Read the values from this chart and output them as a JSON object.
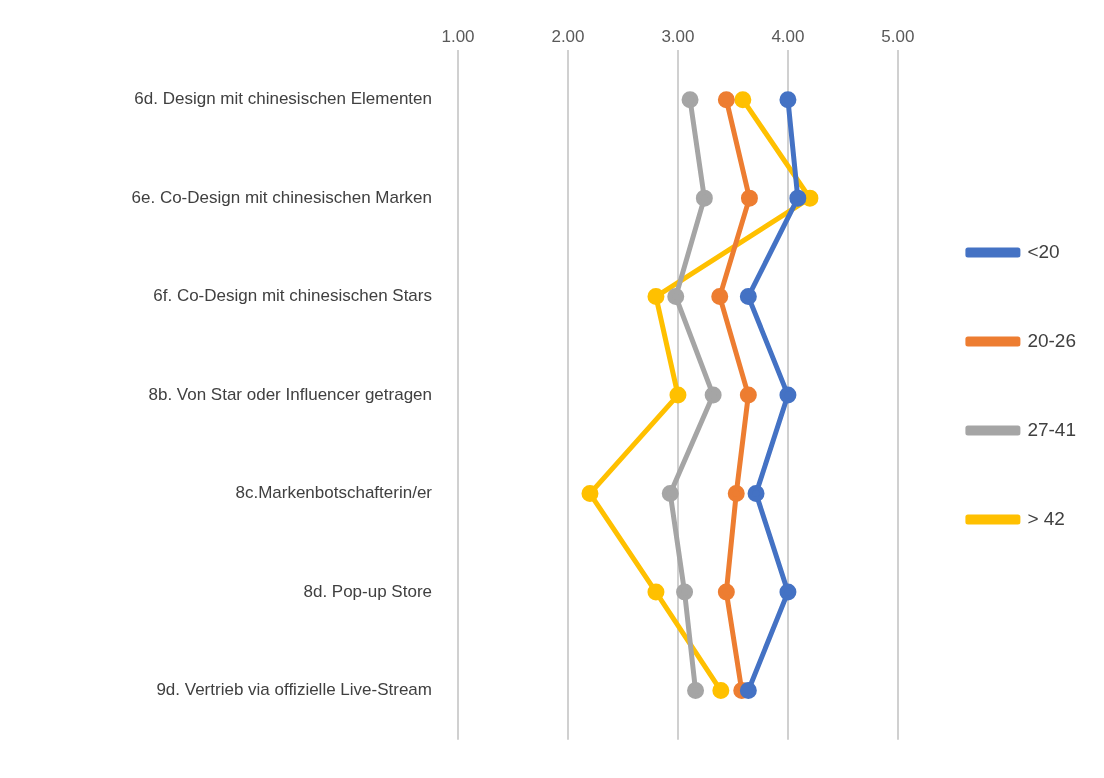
{
  "chart_data": {
    "type": "line",
    "orientation": "horizontal",
    "categories": [
      "6d. Design mit chinesischen Elementen",
      "6e. Co-Design mit chinesischen Marken",
      "6f. Co-Design mit chinesischen Stars",
      "8b. Von Star oder Influencer getragen",
      "8c.Markenbotschafterin/er",
      "8d. Pop-up Store",
      "9d. Vertrieb via offizielle Live-Stream"
    ],
    "series": [
      {
        "name": "<20",
        "color": "#4472c4",
        "values": [
          4.0,
          4.09,
          3.64,
          4.0,
          3.71,
          4.0,
          3.64
        ]
      },
      {
        "name": "20-26",
        "color": "#ed7d31",
        "values": [
          3.44,
          3.65,
          3.38,
          3.64,
          3.53,
          3.44,
          3.58
        ]
      },
      {
        "name": "27-41",
        "color": "#a5a5a5",
        "values": [
          3.11,
          3.24,
          2.98,
          3.32,
          2.93,
          3.06,
          3.16
        ]
      },
      {
        "name": "> 42",
        "color": "#ffc000",
        "values": [
          3.59,
          4.2,
          2.8,
          3.0,
          2.2,
          2.8,
          3.39
        ]
      }
    ],
    "xlim": [
      1,
      5
    ],
    "xticks": [
      {
        "value": 1,
        "label": "1.00"
      },
      {
        "value": 2,
        "label": "2.00"
      },
      {
        "value": 3,
        "label": "3.00"
      },
      {
        "value": 4,
        "label": "4.00"
      },
      {
        "value": 5,
        "label": "5.00"
      }
    ],
    "grid": "x",
    "legend": "right",
    "marker": "circle",
    "line_style": "solid"
  }
}
